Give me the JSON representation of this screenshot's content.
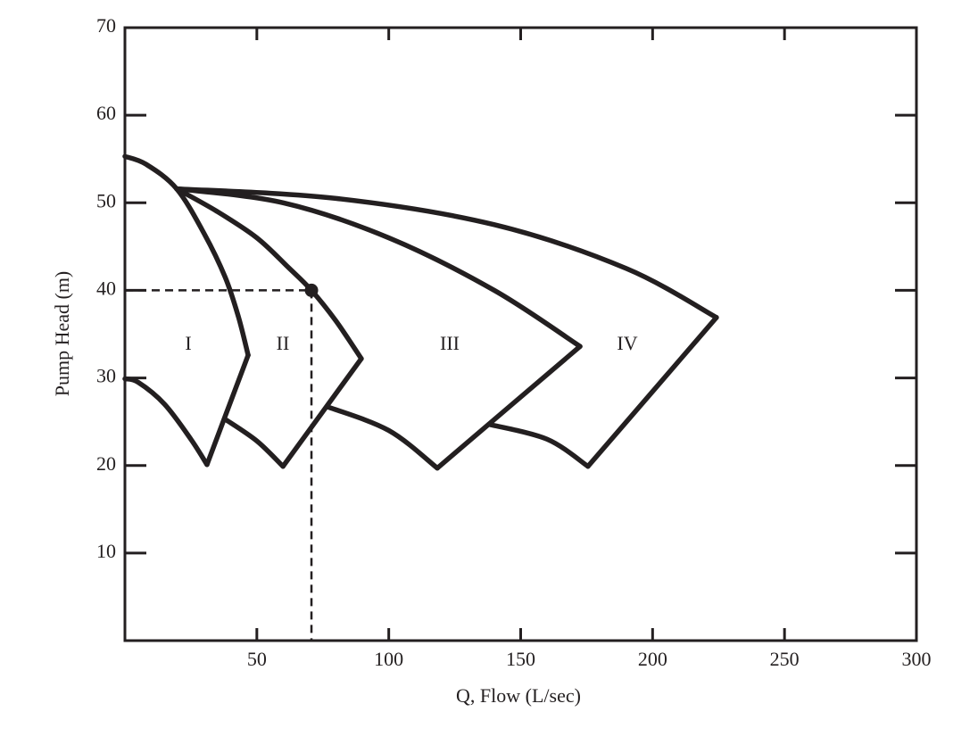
{
  "chart_data": {
    "type": "line",
    "xlabel": "Q, Flow (L/sec)",
    "ylabel": "Pump Head (m)",
    "xlim": [
      0,
      300
    ],
    "ylim": [
      0,
      70
    ],
    "xticks": [
      50,
      100,
      150,
      200,
      250,
      300
    ],
    "yticks": [
      10,
      20,
      30,
      40,
      50,
      60,
      70
    ],
    "color": "#231f20",
    "series": [
      {
        "x": [
          0,
          8,
          19.6,
          30,
          38,
          43,
          46.7
        ],
        "values": [
          55.3,
          54.4,
          51.6,
          46.5,
          41.5,
          37,
          32.6
        ]
      },
      {
        "x": [
          46.7,
          31.1
        ],
        "values": [
          32.6,
          20.1
        ]
      },
      {
        "x": [
          0,
          5,
          15,
          25,
          31.1
        ],
        "values": [
          29.9,
          29.5,
          27,
          23,
          20.1
        ]
      },
      {
        "x": [
          19.6,
          35,
          50,
          62,
          70.7,
          80,
          89.6
        ],
        "values": [
          51.6,
          49,
          46,
          42.6,
          40,
          36.5,
          32.2
        ]
      },
      {
        "x": [
          89.6,
          59.9
        ],
        "values": [
          32.2,
          19.9
        ]
      },
      {
        "x": [
          37.9,
          50,
          59.9
        ],
        "values": [
          25.3,
          22.8,
          19.9
        ]
      },
      {
        "x": [
          19.6,
          60,
          100,
          140,
          172.5
        ],
        "values": [
          51.6,
          50,
          46,
          40,
          33.6
        ]
      },
      {
        "x": [
          172.5,
          118.4
        ],
        "values": [
          33.6,
          19.7
        ]
      },
      {
        "x": [
          76.8,
          100,
          118.4
        ],
        "values": [
          26.7,
          24,
          19.7
        ]
      },
      {
        "x": [
          19.6,
          80,
          140,
          190,
          224.2
        ],
        "values": [
          51.6,
          50.5,
          47.5,
          42.5,
          36.9
        ]
      },
      {
        "x": [
          224.2,
          175.5
        ],
        "values": [
          36.9,
          19.9
        ]
      },
      {
        "x": [
          138,
          160,
          175.5
        ],
        "values": [
          24.7,
          23,
          19.9
        ]
      }
    ],
    "operating_point": {
      "x": 70.7,
      "y": 40
    },
    "annotations": [
      "I",
      "II",
      "III",
      "IV"
    ]
  }
}
